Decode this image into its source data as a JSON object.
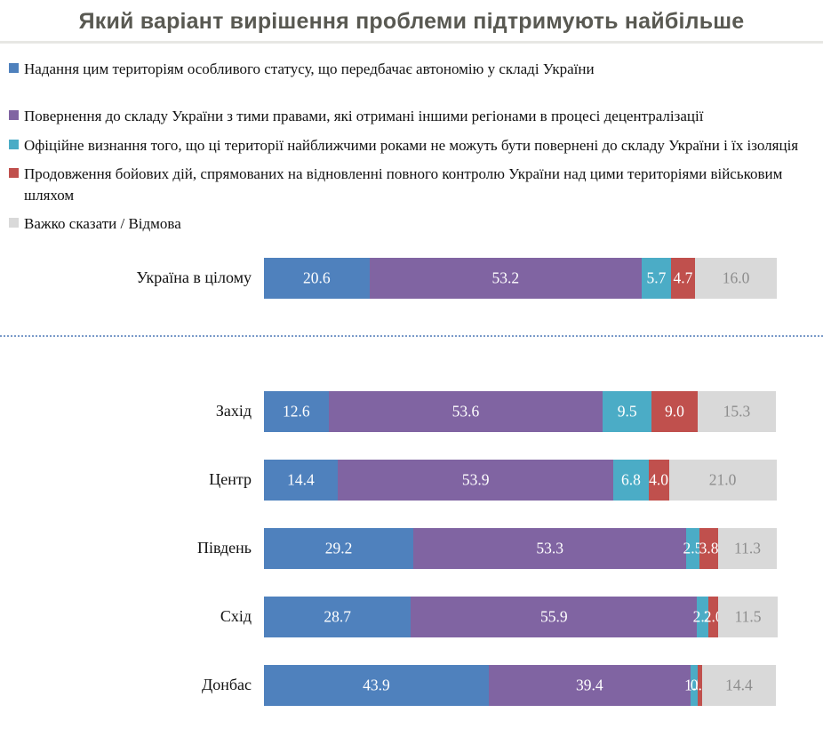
{
  "title": "Який варіант вирішення проблеми підтримують найбільше",
  "colors": {
    "status_blue": "#4F81BD",
    "return_purple": "#8064A2",
    "isolation_cyan": "#4BACC6",
    "military_red": "#C0504D",
    "undecided_gray": "#D9D9D9",
    "gray_value_text": "#8d8d8d",
    "title_text": "#595952",
    "separator_blue": "#7a9ac9"
  },
  "chart_data": {
    "type": "bar",
    "variant": "horizontal-stacked-percent",
    "title": "Який варіант вирішення проблеми підтримують найбільше",
    "xlim": [
      0,
      100
    ],
    "grid": false,
    "legend_position": "top-left",
    "series_labels": [
      "Надання цим територіям особливого статусу, що передбачає автономію у складі України",
      "Повернення до складу України з тими правами, які отримані іншими регіонами в процесі децентралізації",
      "Офіційне визнання того, що ці території найближчими роками не можуть бути повернені до складу України і їх ізоляція",
      "Продовження бойових дій, спрямованих на відновленні повного контролю України над цими територіями військовим шляхом",
      "Важко сказати / Відмова"
    ],
    "series_colors": [
      "#4F81BD",
      "#8064A2",
      "#4BACC6",
      "#C0504D",
      "#D9D9D9"
    ],
    "rows": [
      {
        "category": "Україна в цілому",
        "group": "overall",
        "values": [
          20.6,
          53.2,
          5.7,
          4.7,
          16.0
        ]
      },
      {
        "category": "Захід",
        "group": "region",
        "values": [
          12.6,
          53.6,
          9.5,
          9.0,
          15.3
        ]
      },
      {
        "category": "Центр",
        "group": "region",
        "values": [
          14.4,
          53.9,
          6.8,
          4.0,
          21.0
        ]
      },
      {
        "category": "Південь",
        "group": "region",
        "values": [
          29.2,
          53.3,
          2.5,
          3.8,
          11.3
        ]
      },
      {
        "category": "Схід",
        "group": "region",
        "values": [
          28.7,
          55.9,
          2.2,
          2.0,
          11.5
        ]
      },
      {
        "category": "Донбас",
        "group": "region",
        "values": [
          43.9,
          39.4,
          1.5,
          0.8,
          14.4
        ]
      }
    ]
  }
}
